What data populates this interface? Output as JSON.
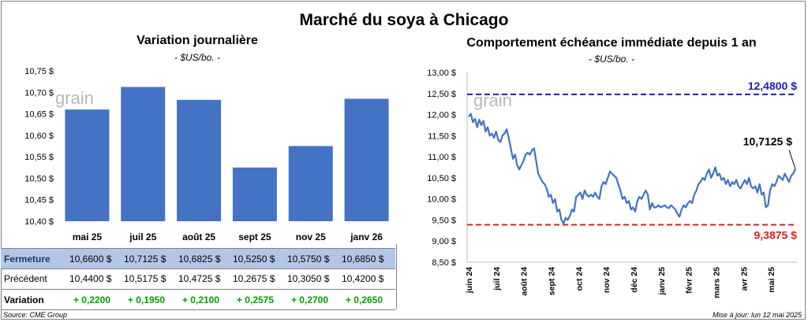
{
  "main_title": "Marché du soya à Chicago",
  "colors": {
    "bar": "#4472c4",
    "line": "#4472c4",
    "high": "#1f1fa8",
    "low": "#e31a1c",
    "positive": "#00a000",
    "header_row": "#b4c6e7"
  },
  "left_panel": {
    "title": "Variation journalière",
    "unit": "- $US/bo. -",
    "watermark": "grain",
    "table": {
      "close_label": "Fermeture",
      "prev_label": "Précédent",
      "var_label": "Variation",
      "close": [
        "10,6600  $",
        "10,7125  $",
        "10,6825  $",
        "10,5250  $",
        "10,5750  $",
        "10,6850  $"
      ],
      "prev": [
        "10,4400  $",
        "10,5175  $",
        "10,4725  $",
        "10,2675  $",
        "10,3050  $",
        "10,4200  $"
      ],
      "var": [
        "+ 0,2200",
        "+ 0,1950",
        "+ 0,2100",
        "+ 0,2575",
        "+ 0,2700",
        "+ 0,2650"
      ]
    }
  },
  "right_panel": {
    "title": "Comportement  échéance immédiate depuis 1 an",
    "unit": "- $US/bo. -",
    "watermark": "grain",
    "high_label": "12,4800 $",
    "low_label": "9,3875 $",
    "last_label": "10,7125 $"
  },
  "footer": {
    "source": "Source: CME Group",
    "updated": "Mise à jour: lun 12 mai 2025"
  },
  "chart_data": [
    {
      "type": "bar",
      "categories": [
        "mai 25",
        "juil 25",
        "août 25",
        "sept 25",
        "nov 25",
        "janv 26"
      ],
      "values": [
        10.66,
        10.7125,
        10.6825,
        10.525,
        10.575,
        10.685
      ],
      "ylim": [
        10.4,
        10.75
      ],
      "yticks": [
        "10,40 $",
        "10,45 $",
        "10,50 $",
        "10,55 $",
        "10,60 $",
        "10,65 $",
        "10,70 $",
        "10,75 $"
      ],
      "grid": false
    },
    {
      "type": "line",
      "xlabels": [
        "juin 24",
        "juil 24",
        "août 24",
        "sept 24",
        "oct 24",
        "nov 24",
        "déc 24",
        "janv 25",
        "févr 25",
        "mars 25",
        "avr 25",
        "mai 25"
      ],
      "ylim": [
        8.5,
        13.0
      ],
      "yticks": [
        "8,50 $",
        "9,00 $",
        "9,50 $",
        "10,00 $",
        "10,50 $",
        "11,00 $",
        "11,50 $",
        "12,00 $",
        "12,50 $",
        "13,00 $"
      ],
      "high": 12.48,
      "low": 9.3875,
      "last": 10.7125,
      "series": [
        {
          "values": [
            11.95,
            12.02,
            11.82,
            11.9,
            11.7,
            11.88,
            11.75,
            11.85,
            11.6,
            11.7,
            11.5,
            11.55,
            11.45,
            11.6,
            11.4,
            11.35,
            11.5,
            11.55,
            11.65,
            11.45,
            11.2,
            10.95,
            11.05,
            10.8,
            10.7,
            10.8,
            10.9,
            11.05,
            11.1,
            11.05,
            11.15,
            11.2,
            10.9,
            10.6,
            10.5,
            10.4,
            10.35,
            10.25,
            10.05,
            10.1,
            9.9,
            10.0,
            9.7,
            9.75,
            9.5,
            9.42,
            9.55,
            9.5,
            9.6,
            9.75,
            9.7,
            10.05,
            10.1,
            10.15,
            10.0,
            10.2,
            10.1,
            10.05,
            10.1,
            10.05,
            10.15,
            10.05,
            10.0,
            10.3,
            10.4,
            10.35,
            10.5,
            10.65,
            10.6,
            10.55,
            10.5,
            10.35,
            10.2,
            10.0,
            10.05,
            9.9,
            9.95,
            9.75,
            9.8,
            9.7,
            9.95,
            10.05,
            10.0,
            10.1,
            10.2,
            10.1,
            9.75,
            9.9,
            9.8,
            9.8,
            9.85,
            9.8,
            9.82,
            9.85,
            9.8,
            9.78,
            9.85,
            9.8,
            9.75,
            9.65,
            9.58,
            9.75,
            9.85,
            9.8,
            9.9,
            9.95,
            9.9,
            10.1,
            10.2,
            10.35,
            10.4,
            10.5,
            10.45,
            10.6,
            10.7,
            10.5,
            10.6,
            10.75,
            10.55,
            10.6,
            10.45,
            10.5,
            10.35,
            10.45,
            10.3,
            10.4,
            10.35,
            10.45,
            10.3,
            10.25,
            10.35,
            10.45,
            10.35,
            10.5,
            10.3,
            10.25,
            10.3,
            10.15,
            10.35,
            10.1,
            10.15,
            9.8,
            9.85,
            10.2,
            10.35,
            10.3,
            10.4,
            10.55,
            10.5,
            10.45,
            10.6,
            10.5,
            10.4,
            10.55,
            10.6,
            10.7125
          ]
        }
      ]
    }
  ]
}
